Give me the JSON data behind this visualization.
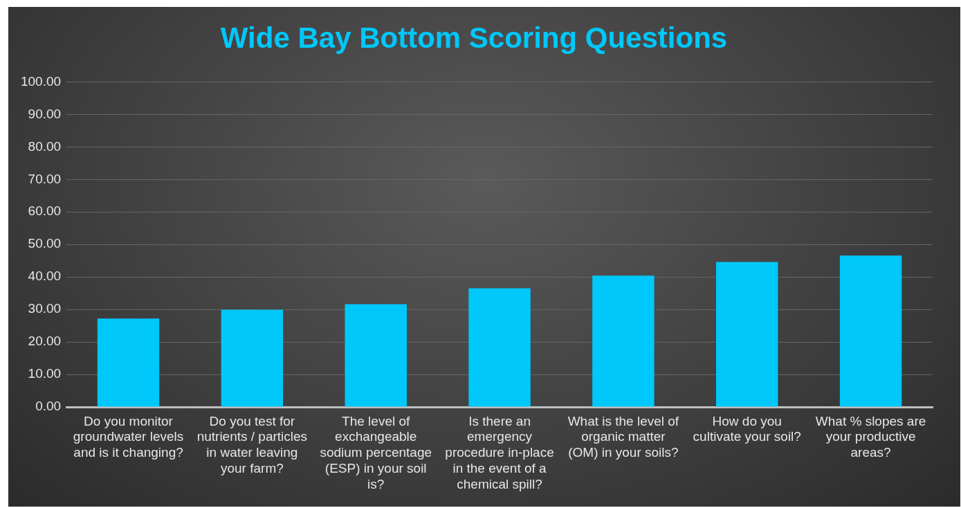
{
  "chart_data": {
    "type": "bar",
    "title": "Wide Bay Bottom Scoring Questions",
    "categories": [
      "Do you monitor groundwater levels and is it changing?",
      "Do you test for nutrients / particles in water leaving your farm?",
      "The level of exchangeable sodium percentage (ESP) in your soil is?",
      "Is there an emergency procedure in-place in the event of a chemical spill?",
      "What is the level of organic matter (OM) in your soils?",
      "How do you cultivate your soil?",
      "What % slopes are your productive areas?"
    ],
    "values": [
      27.2,
      29.9,
      31.6,
      36.5,
      40.4,
      44.6,
      46.6
    ],
    "color": "#00c8fa",
    "ylim": [
      0,
      100
    ],
    "yticks": [
      {
        "value": 0,
        "label": "0.00"
      },
      {
        "value": 10,
        "label": "10.00"
      },
      {
        "value": 20,
        "label": "20.00"
      },
      {
        "value": 30,
        "label": "30.00"
      },
      {
        "value": 40,
        "label": "40.00"
      },
      {
        "value": 50,
        "label": "50.00"
      },
      {
        "value": 60,
        "label": "60.00"
      },
      {
        "value": 70,
        "label": "70.00"
      },
      {
        "value": 80,
        "label": "80.00"
      },
      {
        "value": 90,
        "label": "90.00"
      },
      {
        "value": 100,
        "label": "100.00"
      }
    ],
    "grid": "y",
    "legend": false
  }
}
